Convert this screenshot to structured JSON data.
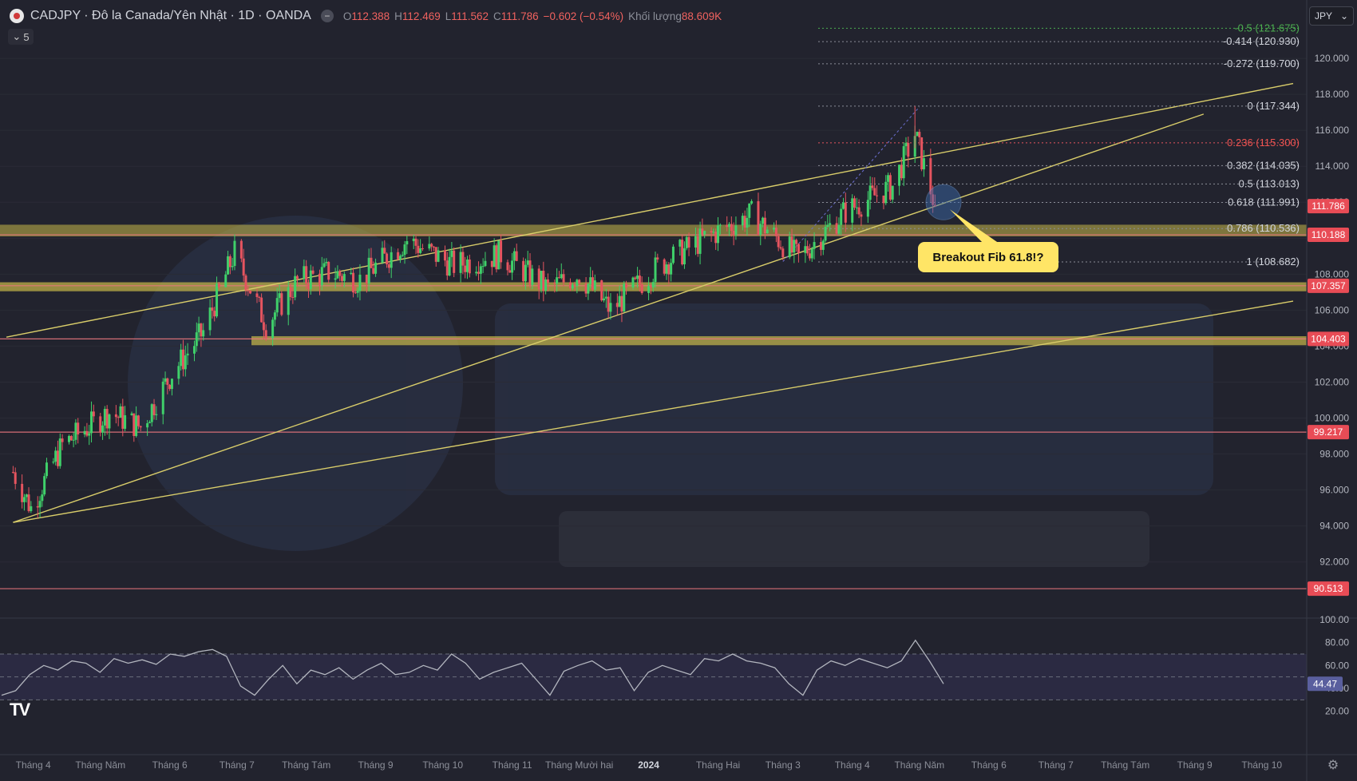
{
  "header": {
    "symbol": "CADJPY · Đô la Canada/Yên Nhật · 1D · OANDA",
    "ohlc": [
      {
        "k": "O",
        "v": "112.388"
      },
      {
        "k": "H",
        "v": "112.469"
      },
      {
        "k": "L",
        "v": "111.562"
      },
      {
        "k": "C",
        "v": "111.786"
      },
      {
        "k": "",
        "v": "−0.602 (−0.54%)"
      },
      {
        "k": "Khối lượng",
        "v": "88.609K"
      }
    ],
    "indicator_count": "5",
    "currency": "JPY"
  },
  "colors": {
    "background": "#22232e",
    "up": "#3fd06a",
    "down": "#e5545f",
    "zone": "#c9b94a",
    "trendline": "#d9cd6a",
    "hline": "#e8767d",
    "rsi": "#b2b5be"
  },
  "chart_data": [
    {
      "type": "candlestick",
      "symbol": "CADJPY",
      "timeframe": "1D",
      "ylim": [
        89.5,
        122.8
      ],
      "price_axis_ticks": [
        120,
        118,
        116,
        114,
        112,
        110,
        108,
        106,
        104,
        102,
        100,
        98,
        96,
        94,
        92
      ],
      "x_labels": [
        "Tháng 4",
        "Tháng Năm",
        "Tháng 6",
        "Tháng 7",
        "Tháng Tám",
        "Tháng 9",
        "Tháng 10",
        "Tháng 11",
        "Tháng Mười hai",
        "2024",
        "Tháng Hai",
        "Tháng 3",
        "Tháng 4",
        "Tháng Năm",
        "Tháng 6",
        "Tháng 7",
        "Tháng Tám",
        "Tháng 9",
        "Tháng 10"
      ],
      "series_close_path": [
        {
          "date": "2023-03-23",
          "close": 97.0
        },
        {
          "date": "2023-03-31",
          "close": 95.0
        },
        {
          "date": "2023-04-14",
          "close": 98.5
        },
        {
          "date": "2023-05-05",
          "close": 100.3
        },
        {
          "date": "2023-05-19",
          "close": 99.5
        },
        {
          "date": "2023-06-02",
          "close": 102.5
        },
        {
          "date": "2023-06-16",
          "close": 104.8
        },
        {
          "date": "2023-06-30",
          "close": 109.2
        },
        {
          "date": "2023-07-14",
          "close": 105.2
        },
        {
          "date": "2023-07-28",
          "close": 107.6
        },
        {
          "date": "2023-08-11",
          "close": 108.1
        },
        {
          "date": "2023-08-25",
          "close": 107.7
        },
        {
          "date": "2023-09-15",
          "close": 109.9
        },
        {
          "date": "2023-10-06",
          "close": 108.5
        },
        {
          "date": "2023-10-27",
          "close": 109.1
        },
        {
          "date": "2023-11-17",
          "close": 107.2
        },
        {
          "date": "2023-12-01",
          "close": 108.0
        },
        {
          "date": "2023-12-15",
          "close": 106.0
        },
        {
          "date": "2024-01-05",
          "close": 108.4
        },
        {
          "date": "2024-01-26",
          "close": 110.0
        },
        {
          "date": "2024-02-16",
          "close": 111.3
        },
        {
          "date": "2024-03-08",
          "close": 108.9
        },
        {
          "date": "2024-03-29",
          "close": 111.5
        },
        {
          "date": "2024-04-19",
          "close": 112.9
        },
        {
          "date": "2024-04-29",
          "close": 115.8
        },
        {
          "date": "2024-05-08",
          "close": 111.786
        }
      ],
      "horizontal_levels": [
        {
          "price": 111.786,
          "label": "111.786"
        },
        {
          "price": 110.188,
          "label": "110.188"
        },
        {
          "price": 107.357,
          "label": "107.357"
        },
        {
          "price": 104.403,
          "label": "104.403"
        },
        {
          "price": 99.217,
          "label": "99.217"
        },
        {
          "price": 90.513,
          "label": "90.513"
        }
      ],
      "fibonacci": [
        {
          "label": "-0.5 (121.675)",
          "price": 121.675
        },
        {
          "label": "-0.414 (120.930)",
          "price": 120.93
        },
        {
          "label": "-0.272 (119.700)",
          "price": 119.7
        },
        {
          "label": "0 (117.344)",
          "price": 117.344
        },
        {
          "label": "0.236 (115.300)",
          "price": 115.3
        },
        {
          "label": "0.382 (114.035)",
          "price": 114.035
        },
        {
          "label": "0.5 (113.013)",
          "price": 113.013
        },
        {
          "label": "0.618 (111.991)",
          "price": 111.991
        },
        {
          "label": "0.786 (110.536)",
          "price": 110.536
        },
        {
          "label": "1 (108.682)",
          "price": 108.682
        }
      ],
      "annotation": "Breakout Fib 61.8!?"
    },
    {
      "type": "line",
      "indicator": "RSI",
      "ylim": [
        10,
        100
      ],
      "axis_ticks": [
        100.0,
        80.0,
        60.0,
        40.0,
        20.0
      ],
      "bands": [
        70,
        50,
        30
      ],
      "last_value_label": "44.47",
      "values": [
        34,
        38,
        52,
        60,
        56,
        64,
        62,
        54,
        66,
        62,
        65,
        61,
        70,
        68,
        72,
        74,
        68,
        42,
        34,
        48,
        60,
        44,
        56,
        52,
        58,
        48,
        56,
        62,
        52,
        54,
        60,
        56,
        70,
        62,
        48,
        54,
        58,
        62,
        48,
        34,
        55,
        60,
        64,
        56,
        58,
        38,
        54,
        60,
        56,
        52,
        66,
        64,
        70,
        64,
        62,
        58,
        44,
        34,
        56,
        64,
        60,
        66,
        62,
        58,
        64,
        82,
        64,
        44
      ]
    }
  ]
}
